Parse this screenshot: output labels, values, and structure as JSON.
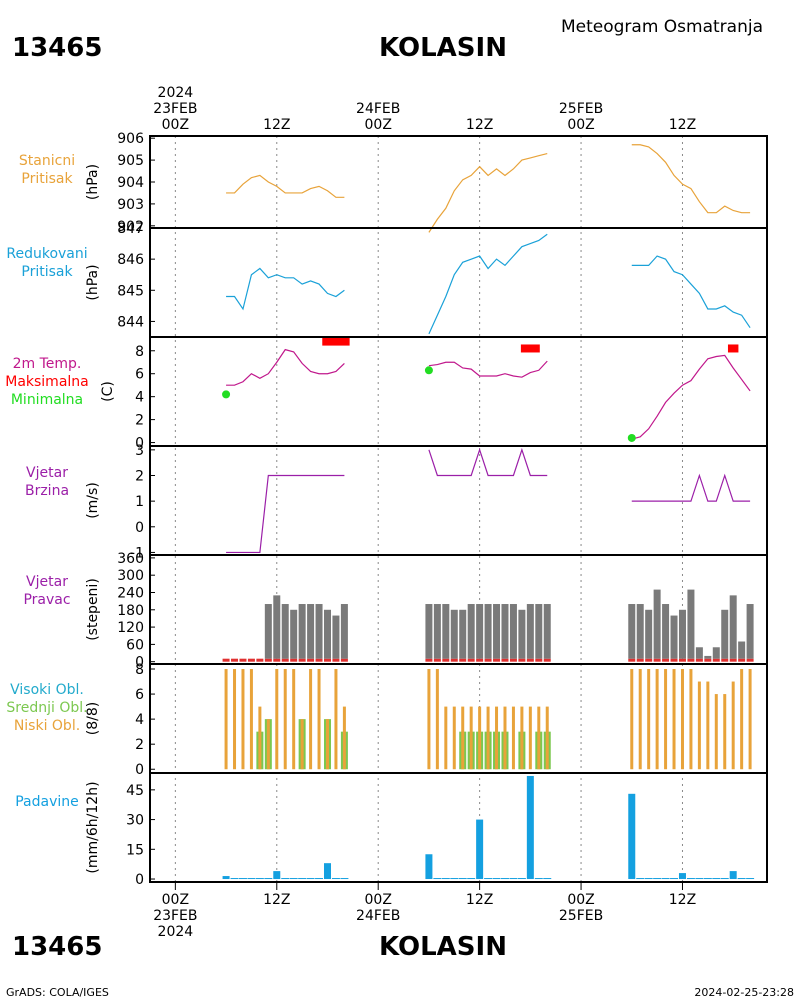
{
  "header": {
    "station_id": "13465",
    "station_name": "KOLASIN",
    "subtitle": "Meteogram Osmatranja"
  },
  "footer": {
    "station_id": "13465",
    "station_name": "KOLASIN",
    "credit": "GrADS: COLA/IGES",
    "timestamp": "2024-02-25-23:28"
  },
  "time_axis": {
    "top_labels": [
      {
        "hour": 0,
        "lines": [
          "2024",
          "23FEB",
          "00Z"
        ]
      },
      {
        "hour": 12,
        "lines": [
          "12Z"
        ]
      },
      {
        "hour": 24,
        "lines": [
          "24FEB",
          "00Z"
        ]
      },
      {
        "hour": 36,
        "lines": [
          "12Z"
        ]
      },
      {
        "hour": 48,
        "lines": [
          "25FEB",
          "00Z"
        ]
      },
      {
        "hour": 60,
        "lines": [
          "12Z"
        ]
      }
    ],
    "bottom_labels": [
      {
        "hour": 0,
        "lines": [
          "00Z",
          "23FEB",
          "2024"
        ]
      },
      {
        "hour": 12,
        "lines": [
          "12Z"
        ]
      },
      {
        "hour": 24,
        "lines": [
          "00Z",
          "24FEB"
        ]
      },
      {
        "hour": 36,
        "lines": [
          "12Z"
        ]
      },
      {
        "hour": 48,
        "lines": [
          "00Z",
          "25FEB"
        ]
      },
      {
        "hour": 60,
        "lines": [
          "12Z"
        ]
      }
    ],
    "range_hours": [
      -3,
      70
    ],
    "unit": "hours since 2024-02-23 00Z"
  },
  "colors": {
    "station_pressure": "#e8a33a",
    "reduced_pressure": "#1aa1d8",
    "temperature": "#c0188c",
    "tmax": "#ff0000",
    "tmin": "#22dd22",
    "wind_speed": "#9b1fa8",
    "wind_dir_bar": "#7a7a7a",
    "wind_dir_base": "#e03030",
    "cloud_high": "#22aacc",
    "cloud_mid": "#7cc850",
    "cloud_low": "#e8a33a",
    "precip": "#14a0e0"
  },
  "chart_data": [
    {
      "type": "line",
      "panel": "station_pressure",
      "labels": [
        "Stanicni",
        "Pritisak"
      ],
      "ylabel": "(hPa)",
      "ylim": [
        901.9,
        906.1
      ],
      "yticks": [
        902,
        903,
        904,
        905,
        906
      ],
      "series": [
        {
          "segments": [
            {
              "x": [
                6,
                7,
                8,
                9,
                10,
                11,
                12,
                13,
                14,
                15,
                16,
                17,
                18,
                19,
                20
              ],
              "y": [
                903.5,
                903.5,
                903.9,
                904.2,
                904.3,
                904.0,
                903.8,
                903.5,
                903.5,
                903.5,
                903.7,
                903.8,
                903.6,
                903.3,
                903.3
              ]
            },
            {
              "x": [
                30,
                31,
                32,
                33,
                34,
                35,
                36,
                37,
                38,
                39,
                40,
                41,
                42,
                43,
                44
              ],
              "y": [
                901.7,
                902.3,
                902.8,
                903.6,
                904.1,
                904.3,
                904.7,
                904.3,
                904.6,
                904.3,
                904.6,
                905.0,
                905.1,
                905.2,
                905.3
              ]
            },
            {
              "x": [
                54,
                55,
                56,
                57,
                58,
                59,
                60,
                61,
                62,
                63,
                64,
                65,
                66,
                67,
                68
              ],
              "y": [
                905.7,
                905.7,
                905.6,
                905.3,
                904.9,
                904.3,
                903.9,
                903.7,
                903.1,
                902.6,
                902.6,
                902.9,
                902.7,
                902.6,
                902.6
              ]
            }
          ]
        }
      ]
    },
    {
      "type": "line",
      "panel": "reduced_pressure",
      "labels": [
        "Redukovani",
        "Pritisak"
      ],
      "ylabel": "(hPa)",
      "ylim": [
        843.5,
        847.0
      ],
      "yticks": [
        844,
        845,
        846,
        847
      ],
      "series": [
        {
          "segments": [
            {
              "x": [
                6,
                7,
                8,
                9,
                10,
                11,
                12,
                13,
                14,
                15,
                16,
                17,
                18,
                19,
                20
              ],
              "y": [
                844.8,
                844.8,
                844.4,
                845.5,
                845.7,
                845.4,
                845.5,
                845.4,
                845.4,
                845.2,
                845.3,
                845.2,
                844.9,
                844.8,
                845.0
              ]
            },
            {
              "x": [
                30,
                31,
                32,
                33,
                34,
                35,
                36,
                37,
                38,
                39,
                40,
                41,
                42,
                43,
                44
              ],
              "y": [
                843.6,
                844.2,
                844.8,
                845.5,
                845.9,
                846.0,
                846.1,
                845.7,
                846.0,
                845.8,
                846.1,
                846.4,
                846.5,
                846.6,
                846.8
              ]
            },
            {
              "x": [
                54,
                55,
                56,
                57,
                58,
                59,
                60,
                61,
                62,
                63,
                64,
                65,
                66,
                67,
                68
              ],
              "y": [
                845.8,
                845.8,
                845.8,
                846.1,
                846.0,
                845.6,
                845.5,
                845.2,
                844.9,
                844.4,
                844.4,
                844.5,
                844.3,
                844.2,
                843.8
              ]
            }
          ]
        }
      ]
    },
    {
      "type": "line",
      "panel": "temperature",
      "labels": [
        "2m Temp.",
        "Maksimalna",
        "Minimalna"
      ],
      "ylabel": "(C)",
      "ylim": [
        -0.3,
        9.2
      ],
      "yticks": [
        0,
        2,
        4,
        6,
        8
      ],
      "series": [
        {
          "segments": [
            {
              "x": [
                6,
                7,
                8,
                9,
                10,
                11,
                12,
                13,
                14,
                15,
                16,
                17,
                18,
                19,
                20
              ],
              "y": [
                5.0,
                5.0,
                5.3,
                6.0,
                5.6,
                6.0,
                7.0,
                8.1,
                7.9,
                6.9,
                6.2,
                6.0,
                6.0,
                6.2,
                6.9
              ]
            },
            {
              "x": [
                30,
                31,
                32,
                33,
                34,
                35,
                36,
                37,
                38,
                39,
                40,
                41,
                42,
                43,
                44
              ],
              "y": [
                6.7,
                6.8,
                7.0,
                7.0,
                6.5,
                6.4,
                5.8,
                5.8,
                5.8,
                6.0,
                5.8,
                5.7,
                6.1,
                6.3,
                7.1
              ]
            },
            {
              "x": [
                54,
                55,
                56,
                57,
                58,
                59,
                60,
                61,
                62,
                63,
                64,
                65,
                66,
                67,
                68
              ],
              "y": [
                0.3,
                0.5,
                1.2,
                2.3,
                3.5,
                4.3,
                5.0,
                5.4,
                6.4,
                7.3,
                7.5,
                7.6,
                6.5,
                5.5,
                4.5
              ]
            }
          ]
        },
        {
          "name": "Maksimalna",
          "points": [
            {
              "x": 19,
              "y": 8.8
            },
            {
              "x": 42,
              "y": 8.2
            },
            {
              "x": 66,
              "y": 8.2
            }
          ],
          "spans": [
            3,
            2,
            1
          ]
        },
        {
          "name": "Minimalna",
          "points": [
            {
              "x": 6,
              "y": 4.2
            },
            {
              "x": 30,
              "y": 6.3
            },
            {
              "x": 54,
              "y": 0.4
            }
          ]
        }
      ]
    },
    {
      "type": "line",
      "panel": "wind_speed",
      "labels": [
        "Vjetar",
        "Brzina"
      ],
      "ylabel": "(m/s)",
      "ylim": [
        -1.1,
        3.15
      ],
      "yticks": [
        -1,
        0,
        1,
        2,
        3
      ],
      "series": [
        {
          "segments": [
            {
              "x": [
                6,
                7,
                8,
                9,
                10,
                11,
                12,
                13,
                14,
                15,
                16,
                17,
                18,
                19,
                20
              ],
              "y": [
                -1,
                -1,
                -1,
                -1,
                -1,
                2,
                2,
                2,
                2,
                2,
                2,
                2,
                2,
                2,
                2
              ]
            },
            {
              "x": [
                30,
                31,
                32,
                33,
                34,
                35,
                36,
                37,
                38,
                39,
                40,
                41,
                42,
                43,
                44
              ],
              "y": [
                3,
                2,
                2,
                2,
                2,
                2,
                3,
                2,
                2,
                2,
                2,
                3,
                2,
                2,
                2
              ]
            },
            {
              "x": [
                54,
                55,
                56,
                57,
                58,
                59,
                60,
                61,
                62,
                63,
                64,
                65,
                66,
                67,
                68
              ],
              "y": [
                1,
                1,
                1,
                1,
                1,
                1,
                1,
                1,
                2,
                1,
                1,
                2,
                1,
                1,
                1
              ]
            }
          ]
        }
      ]
    },
    {
      "type": "bar",
      "panel": "wind_direction",
      "labels": [
        "Vjetar",
        "Pravac"
      ],
      "ylabel": "(stepeni)",
      "ylim": [
        -8,
        370
      ],
      "yticks": [
        0,
        60,
        120,
        180,
        240,
        300,
        360
      ],
      "x": [
        6,
        7,
        8,
        9,
        10,
        11,
        12,
        13,
        14,
        15,
        16,
        17,
        18,
        19,
        20,
        30,
        31,
        32,
        33,
        34,
        35,
        36,
        37,
        38,
        39,
        40,
        41,
        42,
        43,
        44,
        54,
        55,
        56,
        57,
        58,
        59,
        60,
        61,
        62,
        63,
        64,
        65,
        66,
        67,
        68
      ],
      "values": [
        0,
        0,
        0,
        0,
        0,
        200,
        230,
        200,
        180,
        200,
        200,
        200,
        180,
        160,
        200,
        200,
        200,
        200,
        180,
        180,
        200,
        200,
        200,
        200,
        200,
        200,
        180,
        200,
        200,
        200,
        200,
        200,
        180,
        250,
        200,
        160,
        180,
        250,
        50,
        20,
        50,
        180,
        230,
        70,
        200
      ]
    },
    {
      "type": "bar",
      "panel": "clouds",
      "labels": [
        "Visoki Obl.",
        "Srednji Obl.",
        "Niski Obl."
      ],
      "ylabel": "(8/8)",
      "ylim": [
        -0.3,
        8.4
      ],
      "yticks": [
        0,
        2,
        4,
        6,
        8
      ],
      "x": [
        6,
        7,
        8,
        9,
        10,
        11,
        12,
        13,
        14,
        15,
        16,
        17,
        18,
        19,
        20,
        30,
        31,
        32,
        33,
        34,
        35,
        36,
        37,
        38,
        39,
        40,
        41,
        42,
        43,
        44,
        54,
        55,
        56,
        57,
        58,
        59,
        60,
        61,
        62,
        63,
        64,
        65,
        66,
        67,
        68
      ],
      "series": [
        {
          "name": "Niski Obl.",
          "values": [
            8,
            8,
            8,
            8,
            5,
            4,
            8,
            8,
            8,
            4,
            8,
            8,
            4,
            8,
            5,
            8,
            8,
            5,
            5,
            5,
            5,
            5,
            5,
            5,
            5,
            5,
            5,
            5,
            5,
            5,
            8,
            8,
            8,
            8,
            8,
            8,
            8,
            8,
            7,
            7,
            6,
            6,
            7,
            8,
            8
          ]
        },
        {
          "name": "Srednji Obl.",
          "values": [
            0,
            0,
            0,
            0,
            3,
            4,
            0,
            0,
            0,
            4,
            0,
            0,
            4,
            0,
            3,
            0,
            0,
            0,
            0,
            3,
            3,
            3,
            3,
            3,
            3,
            0,
            3,
            0,
            3,
            3,
            0,
            0,
            0,
            0,
            0,
            0,
            0,
            0,
            0,
            0,
            0,
            0,
            0,
            0,
            0
          ]
        }
      ]
    },
    {
      "type": "bar",
      "panel": "precipitation",
      "labels": [
        "Padavine"
      ],
      "ylabel": "(mm/6h/12h)",
      "ylim": [
        -1.5,
        53.5
      ],
      "yticks": [
        0,
        15,
        30,
        45
      ],
      "x": [
        6,
        7,
        8,
        9,
        10,
        11,
        12,
        13,
        14,
        15,
        16,
        17,
        18,
        19,
        20,
        30,
        31,
        32,
        33,
        34,
        35,
        36,
        37,
        38,
        39,
        40,
        41,
        42,
        43,
        44,
        54,
        55,
        56,
        57,
        58,
        59,
        60,
        61,
        62,
        63,
        64,
        65,
        66,
        67,
        68
      ],
      "values": [
        1.5,
        0.5,
        0.5,
        0.5,
        0.5,
        0.5,
        4,
        0.5,
        0.5,
        0.5,
        0.5,
        0.5,
        8,
        0.5,
        0.5,
        12.5,
        0.5,
        0.5,
        0.5,
        0.5,
        0.5,
        30,
        0.5,
        0.5,
        0.5,
        0.5,
        0.5,
        52,
        0.5,
        0.5,
        43,
        0.5,
        0.5,
        0.5,
        0.5,
        0.5,
        3,
        0.5,
        0.5,
        0.5,
        0.5,
        0.5,
        4,
        0.5,
        0.5
      ]
    }
  ]
}
